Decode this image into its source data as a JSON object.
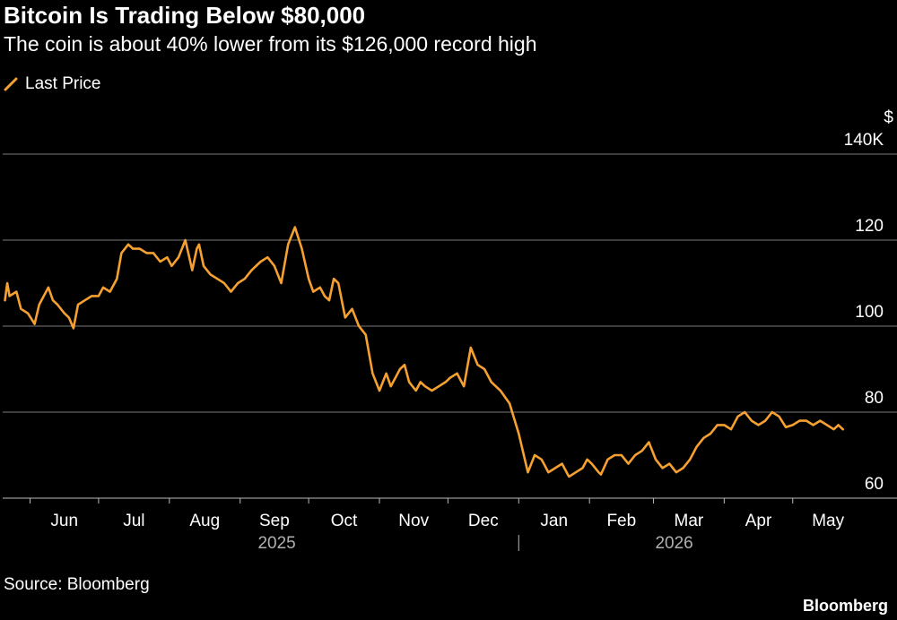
{
  "title": "Bitcoin Is Trading Below $80,000",
  "subtitle": "The coin is about 40% lower from its $126,000 record high",
  "legend_label": "Last Price",
  "source": "Source: Bloomberg",
  "brand": "Bloomberg",
  "colors": {
    "line": "#f5a030",
    "grid": "#7a7a7a",
    "background": "#000000",
    "text": "#ffffff",
    "year_text": "#b0b0b0"
  },
  "chart_data": {
    "type": "line",
    "unit_label": "$",
    "ylim": [
      60,
      140
    ],
    "y_ticks": [
      {
        "value": 140,
        "label": "140K"
      },
      {
        "value": 120,
        "label": "120"
      },
      {
        "value": 100,
        "label": "100"
      },
      {
        "value": 80,
        "label": "80"
      },
      {
        "value": 60,
        "label": "60"
      }
    ],
    "x_ticks": [
      "Jun",
      "Jul",
      "Aug",
      "Sep",
      "Oct",
      "Nov",
      "Dec",
      "Jan",
      "Feb",
      "Mar",
      "Apr",
      "May"
    ],
    "year_labels": [
      "2025",
      "2026"
    ],
    "grid": "horizontal",
    "legend_position": "top-left",
    "series": [
      {
        "name": "Last Price",
        "x": [
          "2025-05-21",
          "2025-05-22",
          "2025-05-23",
          "2025-05-26",
          "2025-05-28",
          "2025-05-31",
          "2025-06-03",
          "2025-06-05",
          "2025-06-09",
          "2025-06-11",
          "2025-06-13",
          "2025-06-16",
          "2025-06-18",
          "2025-06-20",
          "2025-06-22",
          "2025-06-25",
          "2025-06-28",
          "2025-07-01",
          "2025-07-03",
          "2025-07-06",
          "2025-07-09",
          "2025-07-11",
          "2025-07-14",
          "2025-07-16",
          "2025-07-19",
          "2025-07-22",
          "2025-07-25",
          "2025-07-28",
          "2025-07-31",
          "2025-08-02",
          "2025-08-05",
          "2025-08-08",
          "2025-08-11",
          "2025-08-13",
          "2025-08-14",
          "2025-08-16",
          "2025-08-19",
          "2025-08-22",
          "2025-08-25",
          "2025-08-28",
          "2025-08-31",
          "2025-09-03",
          "2025-09-06",
          "2025-09-10",
          "2025-09-13",
          "2025-09-16",
          "2025-09-19",
          "2025-09-22",
          "2025-09-25",
          "2025-09-28",
          "2025-10-01",
          "2025-10-03",
          "2025-10-06",
          "2025-10-08",
          "2025-10-10",
          "2025-10-12",
          "2025-10-14",
          "2025-10-17",
          "2025-10-20",
          "2025-10-23",
          "2025-10-26",
          "2025-10-29",
          "2025-11-01",
          "2025-11-04",
          "2025-11-06",
          "2025-11-10",
          "2025-11-12",
          "2025-11-14",
          "2025-11-17",
          "2025-11-19",
          "2025-11-21",
          "2025-11-24",
          "2025-11-27",
          "2025-11-30",
          "2025-12-02",
          "2025-12-05",
          "2025-12-08",
          "2025-12-11",
          "2025-12-14",
          "2025-12-17",
          "2025-12-20",
          "2025-12-24",
          "2025-12-28",
          "2026-01-01",
          "2026-01-05",
          "2026-01-08",
          "2026-01-11",
          "2026-01-14",
          "2026-01-17",
          "2026-01-20",
          "2026-01-23",
          "2026-01-26",
          "2026-01-29",
          "2026-01-31",
          "2026-02-02",
          "2026-02-05",
          "2026-02-06",
          "2026-02-09",
          "2026-02-12",
          "2026-02-15",
          "2026-02-18",
          "2026-02-21",
          "2026-02-24",
          "2026-02-27",
          "2026-03-02",
          "2026-03-05",
          "2026-03-08",
          "2026-03-11",
          "2026-03-14",
          "2026-03-17",
          "2026-03-20",
          "2026-03-23",
          "2026-03-26",
          "2026-03-29",
          "2026-04-01",
          "2026-04-04",
          "2026-04-07",
          "2026-04-10",
          "2026-04-13",
          "2026-04-16",
          "2026-04-19",
          "2026-04-22",
          "2026-04-25",
          "2026-04-28",
          "2026-05-01",
          "2026-05-04",
          "2026-05-07",
          "2026-05-10",
          "2026-05-13",
          "2026-05-16",
          "2026-05-19",
          "2026-05-21",
          "2026-05-23"
        ],
        "values": [
          106,
          110,
          107,
          108,
          104,
          103,
          100.5,
          105,
          109,
          106,
          105,
          103,
          102,
          99.5,
          105,
          106,
          107,
          107,
          109,
          108,
          111,
          117,
          119,
          118,
          118,
          117,
          117,
          115,
          116,
          114,
          116,
          120,
          113,
          118,
          119,
          114,
          112,
          111,
          110,
          108,
          110,
          111,
          113,
          115,
          116,
          114,
          110,
          119,
          123,
          118,
          111,
          108,
          109,
          107,
          106,
          111,
          110,
          102,
          104,
          100,
          98,
          89,
          85,
          89,
          86,
          90,
          91,
          87,
          85,
          87,
          86,
          85,
          86,
          87,
          88,
          89,
          86,
          95,
          91,
          90,
          87,
          85,
          82,
          75,
          66,
          70,
          69,
          66,
          67,
          68,
          65,
          66,
          67,
          69,
          68,
          66,
          65.5,
          69,
          70,
          70,
          68,
          70,
          71,
          73,
          69,
          67,
          68,
          66,
          67,
          69,
          72,
          74,
          75,
          77,
          77,
          76,
          79,
          80,
          78,
          77,
          78,
          80,
          79,
          76.5,
          77,
          78,
          78,
          77,
          78,
          77,
          76,
          77,
          76
        ]
      }
    ]
  }
}
